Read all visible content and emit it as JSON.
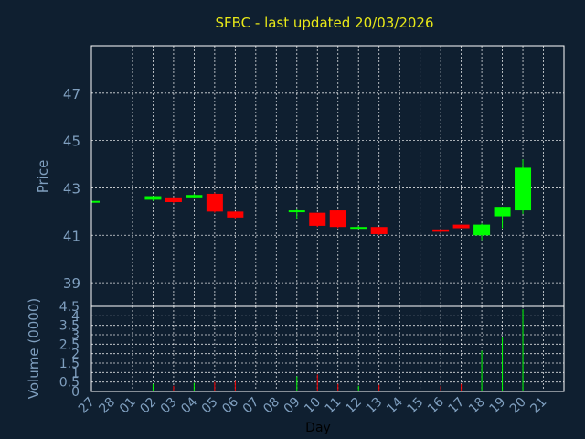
{
  "colors": {
    "background": "#0f1f30",
    "up": "#00ff00",
    "down": "#ff0000",
    "title": "#e8e818",
    "axis_text": "#7f9fbf"
  },
  "chart_data": {
    "type": "candlestick",
    "title": "SFBC - last updated 20/03/2026",
    "xlabel": "Day",
    "ylabel": "Price",
    "volume_label": "Volume (0000)",
    "x_ticks": [
      "27",
      "28",
      "01",
      "02",
      "03",
      "04",
      "05",
      "06",
      "07",
      "08",
      "09",
      "10",
      "11",
      "12",
      "13",
      "14",
      "15",
      "16",
      "17",
      "18",
      "19",
      "20",
      "21"
    ],
    "price_ticks": [
      "39",
      "41",
      "43",
      "45",
      "47"
    ],
    "price_ylim": [
      38,
      49
    ],
    "volume_ticks": [
      "0",
      "0.5",
      "1",
      "1.5",
      "2",
      "2.5",
      "3",
      "3.5",
      "4",
      "4.5"
    ],
    "volume_ylim": [
      0,
      4.5
    ],
    "grid": true,
    "candles": [
      {
        "day": "27",
        "open": 42.45,
        "close": 42.45,
        "high": 42.45,
        "low": 42.45,
        "volume": 0
      },
      {
        "day": "02",
        "open": 42.5,
        "close": 42.65,
        "high": 42.65,
        "low": 42.45,
        "volume": 0.4
      },
      {
        "day": "03",
        "open": 42.6,
        "close": 42.4,
        "high": 42.6,
        "low": 42.35,
        "volume": 0.3
      },
      {
        "day": "04",
        "open": 42.6,
        "close": 42.7,
        "high": 42.75,
        "low": 42.55,
        "volume": 0.45
      },
      {
        "day": "05",
        "open": 42.75,
        "close": 42.0,
        "high": 42.8,
        "low": 41.95,
        "volume": 0.5
      },
      {
        "day": "06",
        "open": 42.0,
        "close": 41.75,
        "high": 42.0,
        "low": 41.7,
        "volume": 0.55
      },
      {
        "day": "09",
        "open": 42.05,
        "close": 42.05,
        "high": 42.1,
        "low": 41.7,
        "volume": 0.8
      },
      {
        "day": "10",
        "open": 41.95,
        "close": 41.4,
        "high": 41.95,
        "low": 41.35,
        "volume": 0.9
      },
      {
        "day": "11",
        "open": 42.05,
        "close": 41.35,
        "high": 42.05,
        "low": 41.3,
        "volume": 0.4
      },
      {
        "day": "12",
        "open": 41.3,
        "close": 41.35,
        "high": 41.4,
        "low": 41.3,
        "volume": 0.3
      },
      {
        "day": "13",
        "open": 41.35,
        "close": 41.05,
        "high": 41.35,
        "low": 41.0,
        "volume": 0.35
      },
      {
        "day": "16",
        "open": 41.25,
        "close": 41.15,
        "high": 41.25,
        "low": 41.1,
        "volume": 0.3
      },
      {
        "day": "17",
        "open": 41.45,
        "close": 41.3,
        "high": 41.45,
        "low": 41.3,
        "volume": 0.4
      },
      {
        "day": "18",
        "open": 41.0,
        "close": 41.45,
        "high": 41.5,
        "low": 40.8,
        "volume": 2.15
      },
      {
        "day": "19",
        "open": 41.8,
        "close": 42.2,
        "high": 42.2,
        "low": 41.3,
        "volume": 2.85
      },
      {
        "day": "20",
        "open": 42.05,
        "close": 43.85,
        "high": 44.2,
        "low": 41.9,
        "volume": 4.35
      }
    ]
  }
}
